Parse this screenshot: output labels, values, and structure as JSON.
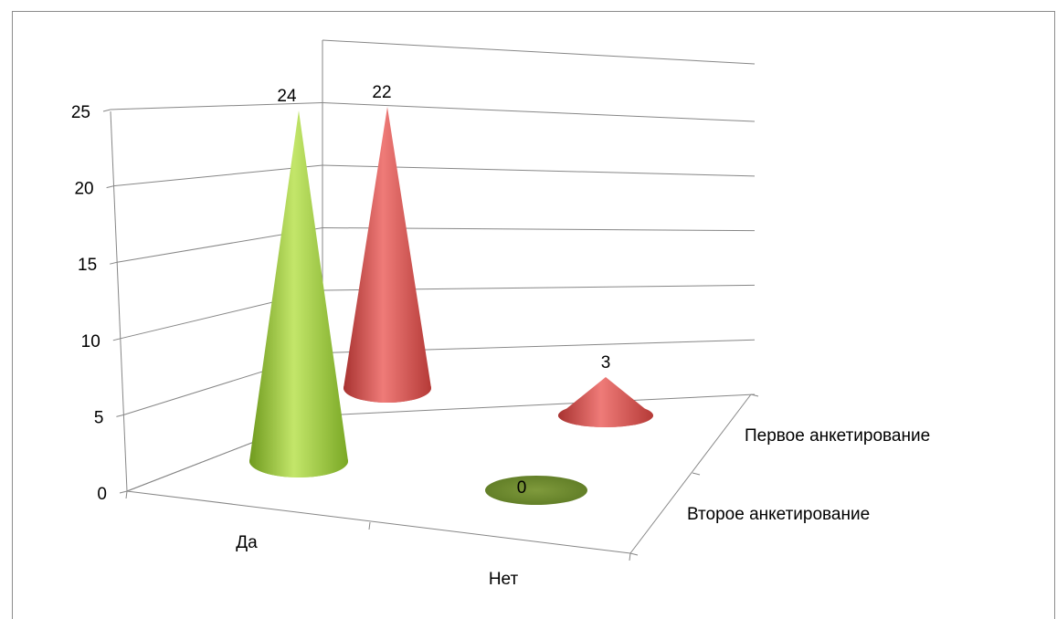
{
  "chart_data": {
    "type": "bar",
    "subtype": "3d-cone",
    "categories": [
      "Да",
      "Нет"
    ],
    "series": [
      {
        "name": "Второе анкетирование",
        "values": [
          24,
          0
        ],
        "color": "#9acd3c"
      },
      {
        "name": "Первое анкетирование",
        "values": [
          22,
          3
        ],
        "color": "#d9534f"
      }
    ],
    "ylim": [
      0,
      25
    ],
    "yticks": [
      0,
      5,
      10,
      15,
      20,
      25
    ],
    "ytick_labels": [
      "0",
      "5",
      "10",
      "15",
      "20",
      "25"
    ],
    "data_labels": {
      "Второе анкетирование": [
        "24",
        "0"
      ],
      "Первое анкетирование": [
        "22",
        "3"
      ]
    },
    "grid": true,
    "title": "",
    "xlabel": "",
    "ylabel": ""
  }
}
